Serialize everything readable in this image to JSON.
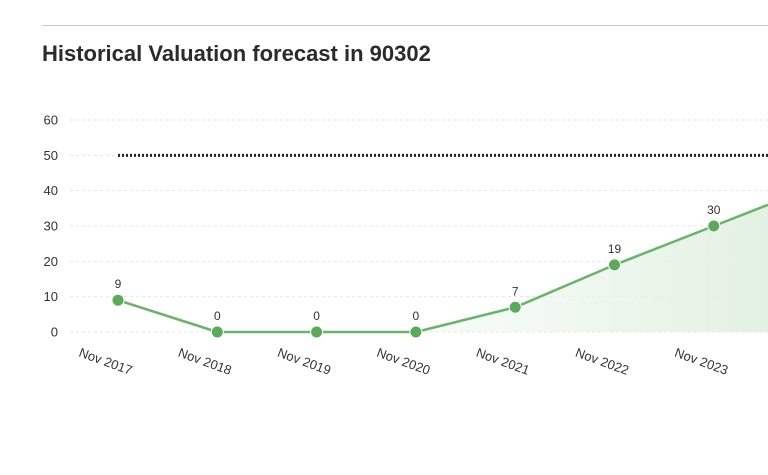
{
  "page": {
    "title": "Historical Valuation forecast in 90302"
  },
  "chart_data": {
    "type": "area",
    "title": "Historical Valuation forecast in 90302",
    "xlabel": "",
    "ylabel": "",
    "categories": [
      "Nov 2017",
      "Nov 2018",
      "Nov 2019",
      "Nov 2020",
      "Nov 2021",
      "Nov 2022",
      "Nov 2023"
    ],
    "series": [
      {
        "name": "Valuation forecast",
        "values": [
          9,
          0,
          0,
          0,
          7,
          19,
          30
        ],
        "data_labels": [
          "9",
          "0",
          "0",
          "0",
          "7",
          "19",
          "30"
        ],
        "trailing_value": 36
      }
    ],
    "reference_line": {
      "value": 50,
      "style": "dotted"
    },
    "ylim": [
      0,
      60
    ],
    "yticks": [
      0,
      10,
      20,
      30,
      40,
      50,
      60
    ],
    "ytick_labels": [
      "0",
      "10",
      "20",
      "30",
      "40",
      "50",
      "60"
    ],
    "grid": true,
    "legend": "none",
    "colors": {
      "line": "#6ab46a",
      "marker": "#5aaa5a",
      "fill": "#e8f4e8",
      "reference": "#222222",
      "grid": "#e6e6e6"
    }
  }
}
